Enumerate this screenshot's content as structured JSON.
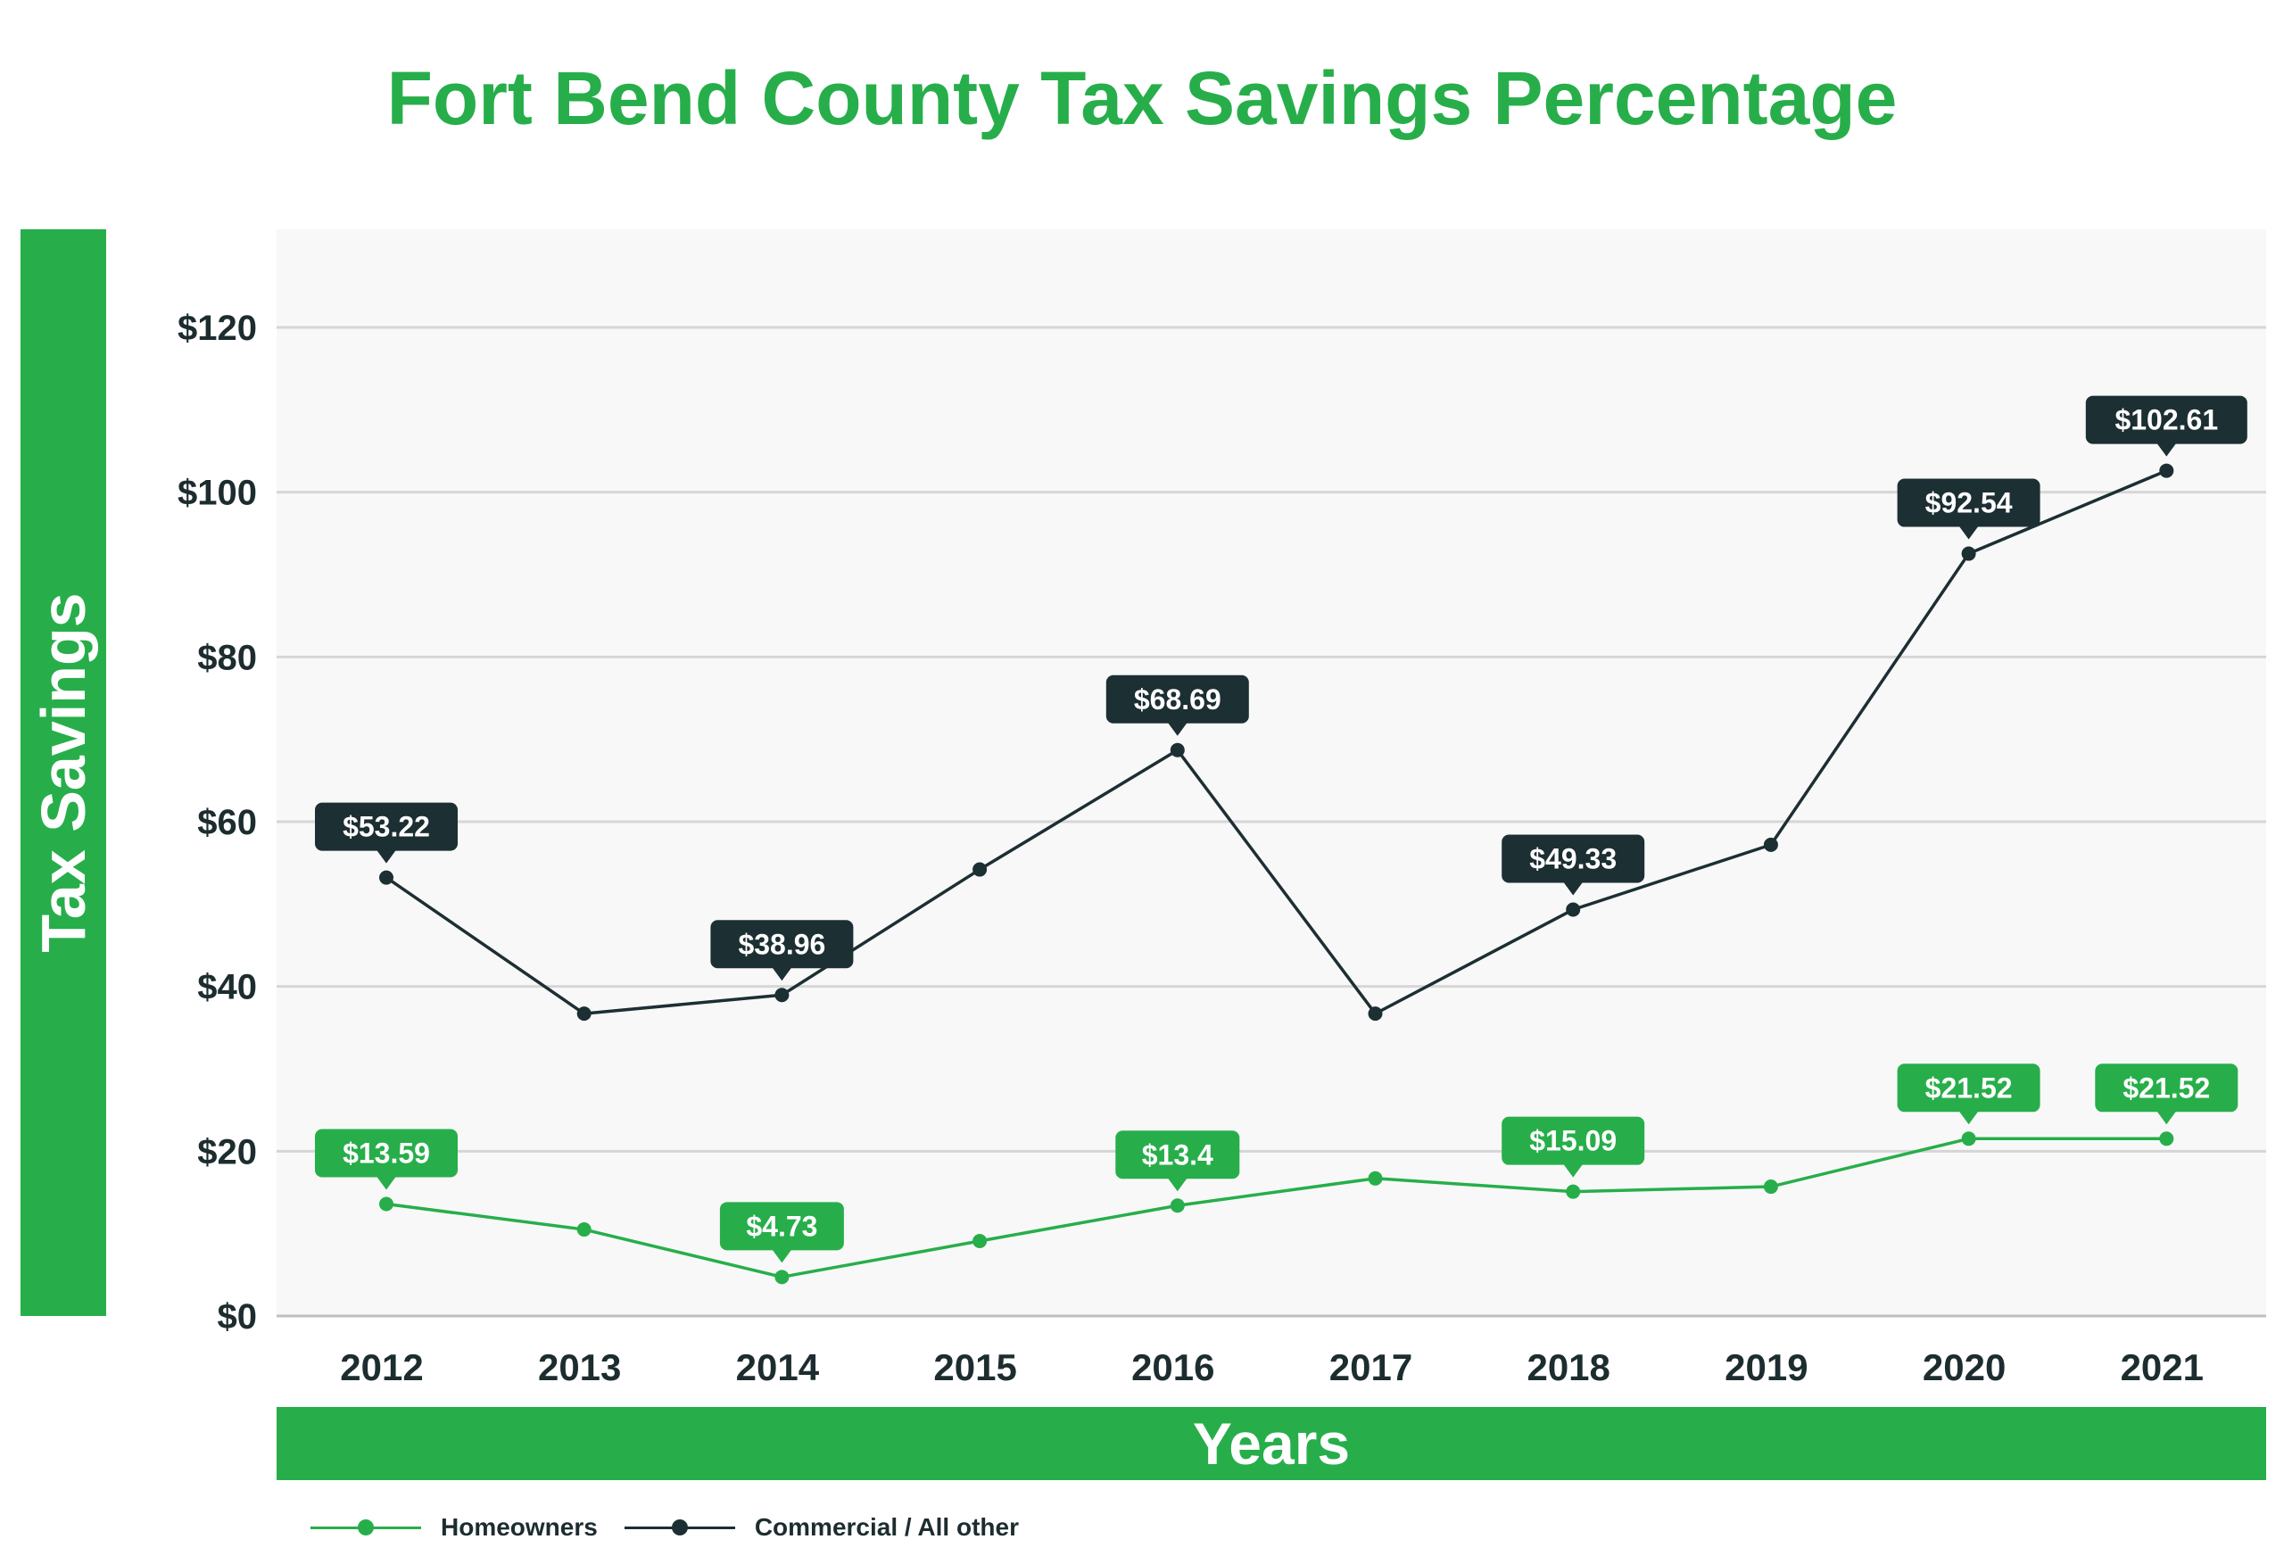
{
  "title": "Fort Bend County Tax Savings Percentage",
  "ylabel": "Tax Savings",
  "xlabel": "Years",
  "colors": {
    "homeowners": "#27ae4a",
    "commercial": "#1c2f33",
    "plot_background": "#f8f8f8",
    "grid": "#d6d6d6",
    "axis_text": "#1d2d2f"
  },
  "chart_data": {
    "type": "line",
    "title": "Fort Bend County Tax Savings Percentage",
    "xlabel": "Years",
    "ylabel": "Tax Savings",
    "x": [
      "2012",
      "2013",
      "2014",
      "2015",
      "2016",
      "2017",
      "2018",
      "2019",
      "2020",
      "2021"
    ],
    "ylim": [
      0,
      130
    ],
    "yticks": [
      0,
      20,
      40,
      60,
      80,
      100,
      120
    ],
    "ytick_labels": [
      "$0",
      "$20",
      "$40",
      "$60",
      "$80",
      "$100",
      "$120"
    ],
    "grid": true,
    "legend_position": "bottom-left",
    "series": [
      {
        "name": "Homeowners",
        "color": "#27ae4a",
        "values": [
          13.59,
          10.5,
          4.73,
          9.1,
          13.4,
          16.7,
          15.09,
          15.7,
          21.52,
          21.52
        ],
        "labels": [
          "$13.59",
          "",
          "$4.73",
          "",
          "$13.4",
          "",
          "$15.09",
          "",
          "$21.52",
          "$21.52"
        ]
      },
      {
        "name": "Commercial / All other",
        "color": "#1c2f33",
        "values": [
          53.22,
          36.7,
          38.96,
          54.2,
          68.69,
          36.7,
          49.33,
          57.2,
          92.54,
          102.61
        ],
        "labels": [
          "$53.22",
          "",
          "$38.96",
          "",
          "$68.69",
          "",
          "$49.33",
          "",
          "$92.54",
          "$102.61"
        ]
      }
    ]
  }
}
